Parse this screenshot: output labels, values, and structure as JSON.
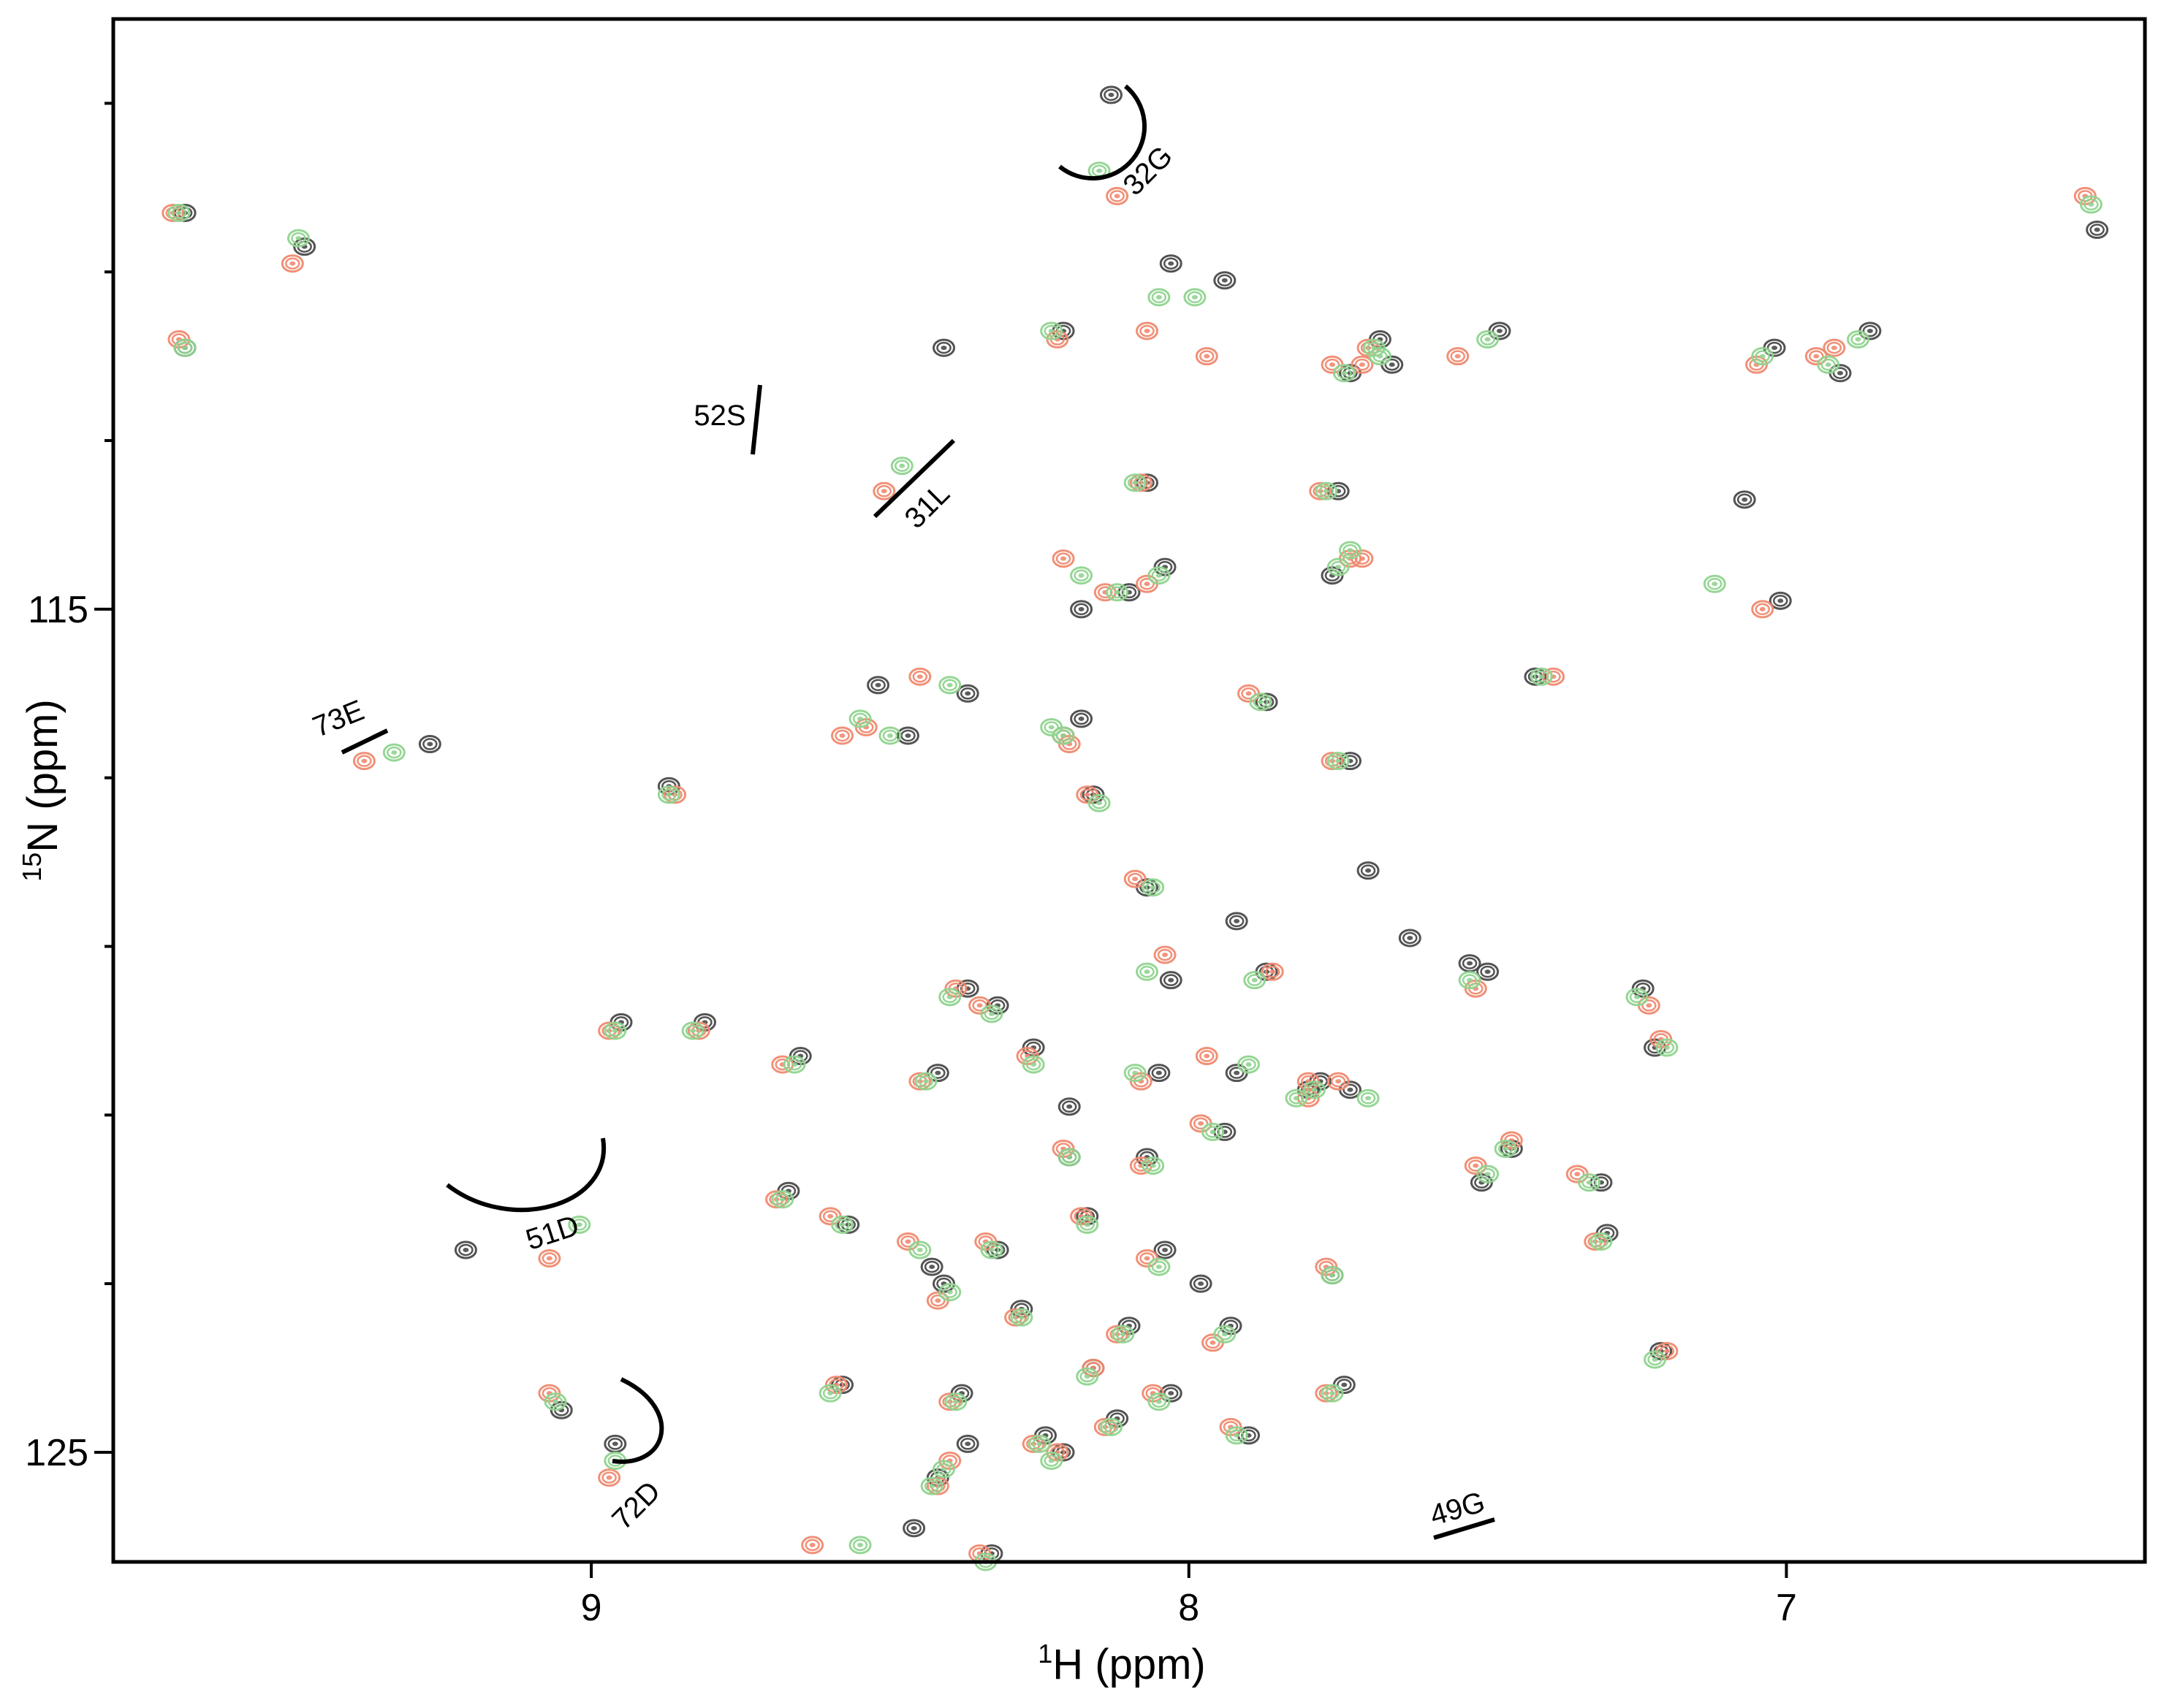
{
  "chart_data": {
    "type": "scatter",
    "title": "",
    "xlabel": {
      "sup": "1",
      "main": "H (ppm)"
    },
    "ylabel": {
      "sup": "15",
      "main": "N (ppm)"
    },
    "xlim": [
      9.8,
      6.4
    ],
    "ylim": [
      108.0,
      126.3
    ],
    "x_axis_reversed": true,
    "y_axis_reversed": true,
    "x_ticks": [
      9,
      8,
      7
    ],
    "x_tick_labels": [
      "9",
      "8",
      "7"
    ],
    "y_ticks": [
      115,
      125
    ],
    "y_tick_labels": [
      "115",
      "125"
    ],
    "y_minor_ticks": [
      109,
      111,
      113,
      117,
      119,
      121,
      123
    ],
    "colors": {
      "black": "#4a4a4a",
      "red": "#f08a70",
      "green": "#8fd48f"
    },
    "series": [
      {
        "color_key": "black",
        "points": [
          [
            8.13,
            108.9
          ],
          [
            6.48,
            110.5
          ],
          [
            9.68,
            110.3
          ],
          [
            9.48,
            110.7
          ],
          [
            8.03,
            110.9
          ],
          [
            7.94,
            111.1
          ],
          [
            8.21,
            111.7
          ],
          [
            9.68,
            111.9
          ],
          [
            8.41,
            111.9
          ],
          [
            7.48,
            111.7
          ],
          [
            7.68,
            111.8
          ],
          [
            7.66,
            112.1
          ],
          [
            7.73,
            112.2
          ],
          [
            6.86,
            111.7
          ],
          [
            7.02,
            111.9
          ],
          [
            6.91,
            112.2
          ],
          [
            8.07,
            113.5
          ],
          [
            7.75,
            113.6
          ],
          [
            7.07,
            113.7
          ],
          [
            8.04,
            114.5
          ],
          [
            7.76,
            114.6
          ],
          [
            8.1,
            114.8
          ],
          [
            8.18,
            115.0
          ],
          [
            7.01,
            114.9
          ],
          [
            9.27,
            116.6
          ],
          [
            8.87,
            117.1
          ],
          [
            8.52,
            115.9
          ],
          [
            8.37,
            116.0
          ],
          [
            8.47,
            116.5
          ],
          [
            8.18,
            116.3
          ],
          [
            8.21,
            116.5
          ],
          [
            7.42,
            115.8
          ],
          [
            7.87,
            116.1
          ],
          [
            7.73,
            116.8
          ],
          [
            8.16,
            117.2
          ],
          [
            8.03,
            119.4
          ],
          [
            8.37,
            119.5
          ],
          [
            8.32,
            119.7
          ],
          [
            8.07,
            118.3
          ],
          [
            7.87,
            119.3
          ],
          [
            7.5,
            119.3
          ],
          [
            7.24,
            119.5
          ],
          [
            8.95,
            119.9
          ],
          [
            8.81,
            119.9
          ],
          [
            8.65,
            120.3
          ],
          [
            8.42,
            120.5
          ],
          [
            8.26,
            120.2
          ],
          [
            8.05,
            120.5
          ],
          [
            7.92,
            120.5
          ],
          [
            7.8,
            120.7
          ],
          [
            7.94,
            121.2
          ],
          [
            7.73,
            120.7
          ],
          [
            8.07,
            121.5
          ],
          [
            7.46,
            121.4
          ],
          [
            7.51,
            121.8
          ],
          [
            7.31,
            121.8
          ],
          [
            8.67,
            121.9
          ],
          [
            8.57,
            122.3
          ],
          [
            8.43,
            122.8
          ],
          [
            8.32,
            122.6
          ],
          [
            8.17,
            122.2
          ],
          [
            8.04,
            122.6
          ],
          [
            7.76,
            122.9
          ],
          [
            7.3,
            122.4
          ],
          [
            9.21,
            122.6
          ],
          [
            8.41,
            123.0
          ],
          [
            8.28,
            123.3
          ],
          [
            8.1,
            123.5
          ],
          [
            7.93,
            123.5
          ],
          [
            8.16,
            124.0
          ],
          [
            7.21,
            123.8
          ],
          [
            8.58,
            124.2
          ],
          [
            8.38,
            124.3
          ],
          [
            8.03,
            124.3
          ],
          [
            7.9,
            124.8
          ],
          [
            8.24,
            124.8
          ],
          [
            8.12,
            124.6
          ],
          [
            8.37,
            124.9
          ],
          [
            8.21,
            125.0
          ],
          [
            8.42,
            125.3
          ],
          [
            7.74,
            124.2
          ],
          [
            9.05,
            124.5
          ],
          [
            8.96,
            124.9
          ],
          [
            8.46,
            125.9
          ],
          [
            8.33,
            126.2
          ],
          [
            7.22,
            120.2
          ],
          [
            7.78,
            120.6
          ],
          [
            8.2,
            121.5
          ],
          [
            7.7,
            118.1
          ],
          [
            7.92,
            118.7
          ],
          [
            7.63,
            118.9
          ],
          [
            7.53,
            119.2
          ],
          [
            7.98,
            123.0
          ],
          [
            8.2,
            120.9
          ]
        ]
      },
      {
        "color_key": "red",
        "points": [
          [
            8.12,
            110.1
          ],
          [
            6.5,
            110.1
          ],
          [
            9.7,
            110.3
          ],
          [
            9.5,
            110.9
          ],
          [
            8.07,
            111.7
          ],
          [
            7.97,
            112.0
          ],
          [
            8.22,
            111.8
          ],
          [
            9.69,
            111.8
          ],
          [
            8.51,
            113.6
          ],
          [
            7.55,
            112.0
          ],
          [
            7.71,
            112.1
          ],
          [
            7.7,
            111.9
          ],
          [
            7.76,
            112.1
          ],
          [
            6.92,
            111.9
          ],
          [
            7.05,
            112.1
          ],
          [
            6.95,
            112.0
          ],
          [
            8.08,
            113.5
          ],
          [
            7.78,
            113.6
          ],
          [
            7.71,
            114.4
          ],
          [
            8.07,
            114.7
          ],
          [
            7.73,
            114.4
          ],
          [
            8.14,
            114.8
          ],
          [
            8.21,
            114.4
          ],
          [
            7.04,
            115.0
          ],
          [
            9.38,
            116.8
          ],
          [
            8.86,
            117.2
          ],
          [
            8.58,
            116.5
          ],
          [
            8.45,
            115.8
          ],
          [
            8.54,
            116.4
          ],
          [
            8.2,
            116.6
          ],
          [
            8.21,
            116.5
          ],
          [
            7.39,
            115.8
          ],
          [
            7.9,
            116.0
          ],
          [
            7.76,
            116.8
          ],
          [
            8.17,
            117.2
          ],
          [
            8.04,
            119.1
          ],
          [
            8.39,
            119.5
          ],
          [
            8.35,
            119.7
          ],
          [
            8.09,
            118.2
          ],
          [
            7.86,
            119.3
          ],
          [
            7.52,
            119.5
          ],
          [
            7.23,
            119.7
          ],
          [
            8.97,
            120.0
          ],
          [
            8.82,
            120.0
          ],
          [
            8.68,
            120.4
          ],
          [
            8.45,
            120.6
          ],
          [
            8.27,
            120.3
          ],
          [
            8.08,
            120.6
          ],
          [
            7.97,
            120.3
          ],
          [
            7.8,
            120.8
          ],
          [
            7.98,
            121.1
          ],
          [
            7.75,
            120.6
          ],
          [
            8.08,
            121.6
          ],
          [
            7.46,
            121.3
          ],
          [
            7.52,
            121.6
          ],
          [
            7.35,
            121.7
          ],
          [
            8.69,
            122.0
          ],
          [
            8.6,
            122.2
          ],
          [
            8.47,
            122.5
          ],
          [
            8.34,
            122.5
          ],
          [
            8.18,
            122.2
          ],
          [
            8.07,
            122.7
          ],
          [
            7.77,
            122.8
          ],
          [
            7.32,
            122.5
          ],
          [
            9.07,
            122.7
          ],
          [
            8.42,
            123.2
          ],
          [
            8.29,
            123.4
          ],
          [
            8.12,
            123.6
          ],
          [
            7.96,
            123.7
          ],
          [
            8.16,
            124.0
          ],
          [
            7.2,
            123.8
          ],
          [
            8.59,
            124.2
          ],
          [
            8.4,
            124.4
          ],
          [
            8.06,
            124.3
          ],
          [
            7.93,
            124.7
          ],
          [
            8.26,
            124.9
          ],
          [
            8.14,
            124.7
          ],
          [
            8.4,
            125.1
          ],
          [
            8.22,
            125.0
          ],
          [
            8.42,
            125.4
          ],
          [
            7.77,
            124.3
          ],
          [
            9.07,
            124.3
          ],
          [
            8.97,
            125.3
          ],
          [
            8.63,
            126.1
          ],
          [
            8.35,
            126.2
          ],
          [
            7.21,
            120.1
          ],
          [
            7.8,
            120.6
          ],
          [
            8.21,
            121.4
          ]
        ]
      },
      {
        "color_key": "green",
        "points": [
          [
            8.15,
            109.8
          ],
          [
            6.49,
            110.2
          ],
          [
            9.69,
            110.3
          ],
          [
            9.49,
            110.6
          ],
          [
            8.05,
            111.3
          ],
          [
            7.99,
            111.3
          ],
          [
            8.23,
            111.7
          ],
          [
            9.68,
            111.9
          ],
          [
            8.48,
            113.3
          ],
          [
            7.5,
            111.8
          ],
          [
            7.69,
            111.9
          ],
          [
            7.68,
            112.0
          ],
          [
            7.74,
            112.2
          ],
          [
            6.88,
            111.8
          ],
          [
            7.04,
            112.0
          ],
          [
            6.93,
            112.1
          ],
          [
            8.09,
            113.5
          ],
          [
            7.77,
            113.6
          ],
          [
            7.73,
            114.3
          ],
          [
            8.05,
            114.6
          ],
          [
            7.75,
            114.5
          ],
          [
            8.12,
            114.8
          ],
          [
            8.18,
            114.6
          ],
          [
            7.12,
            114.7
          ],
          [
            9.33,
            116.7
          ],
          [
            8.87,
            117.2
          ],
          [
            8.55,
            116.3
          ],
          [
            8.4,
            115.9
          ],
          [
            8.5,
            116.5
          ],
          [
            8.21,
            116.5
          ],
          [
            8.23,
            116.4
          ],
          [
            7.41,
            115.8
          ],
          [
            7.88,
            116.1
          ],
          [
            7.75,
            116.8
          ],
          [
            8.15,
            117.3
          ],
          [
            8.07,
            119.3
          ],
          [
            8.4,
            119.6
          ],
          [
            8.33,
            119.8
          ],
          [
            8.06,
            118.3
          ],
          [
            7.89,
            119.4
          ],
          [
            7.53,
            119.4
          ],
          [
            7.25,
            119.6
          ],
          [
            8.96,
            120.0
          ],
          [
            8.83,
            120.0
          ],
          [
            8.66,
            120.4
          ],
          [
            8.44,
            120.6
          ],
          [
            8.26,
            120.4
          ],
          [
            8.09,
            120.5
          ],
          [
            7.9,
            120.4
          ],
          [
            7.82,
            120.8
          ],
          [
            7.96,
            121.2
          ],
          [
            7.7,
            120.8
          ],
          [
            8.06,
            121.6
          ],
          [
            7.47,
            121.4
          ],
          [
            7.5,
            121.7
          ],
          [
            7.33,
            121.8
          ],
          [
            8.68,
            122.0
          ],
          [
            8.58,
            122.3
          ],
          [
            8.45,
            122.6
          ],
          [
            8.33,
            122.6
          ],
          [
            8.17,
            122.3
          ],
          [
            8.05,
            122.8
          ],
          [
            7.76,
            122.9
          ],
          [
            7.31,
            122.5
          ],
          [
            9.02,
            122.3
          ],
          [
            8.4,
            123.1
          ],
          [
            8.28,
            123.4
          ],
          [
            8.11,
            123.6
          ],
          [
            7.94,
            123.6
          ],
          [
            8.17,
            124.1
          ],
          [
            7.22,
            123.9
          ],
          [
            8.6,
            124.3
          ],
          [
            8.39,
            124.4
          ],
          [
            8.05,
            124.4
          ],
          [
            7.92,
            124.8
          ],
          [
            8.25,
            124.9
          ],
          [
            8.13,
            124.7
          ],
          [
            8.41,
            125.2
          ],
          [
            8.23,
            125.1
          ],
          [
            8.43,
            125.4
          ],
          [
            7.76,
            124.3
          ],
          [
            9.06,
            124.4
          ],
          [
            8.96,
            125.1
          ],
          [
            8.55,
            126.1
          ],
          [
            8.34,
            126.3
          ],
          [
            7.2,
            120.2
          ],
          [
            7.79,
            120.7
          ],
          [
            8.2,
            121.5
          ]
        ]
      }
    ],
    "annotations": [
      {
        "label": "32G"
      },
      {
        "label": "52S"
      },
      {
        "label": "31L"
      },
      {
        "label": "73E"
      },
      {
        "label": "51D"
      },
      {
        "label": "72D"
      },
      {
        "label": "49G"
      }
    ]
  }
}
